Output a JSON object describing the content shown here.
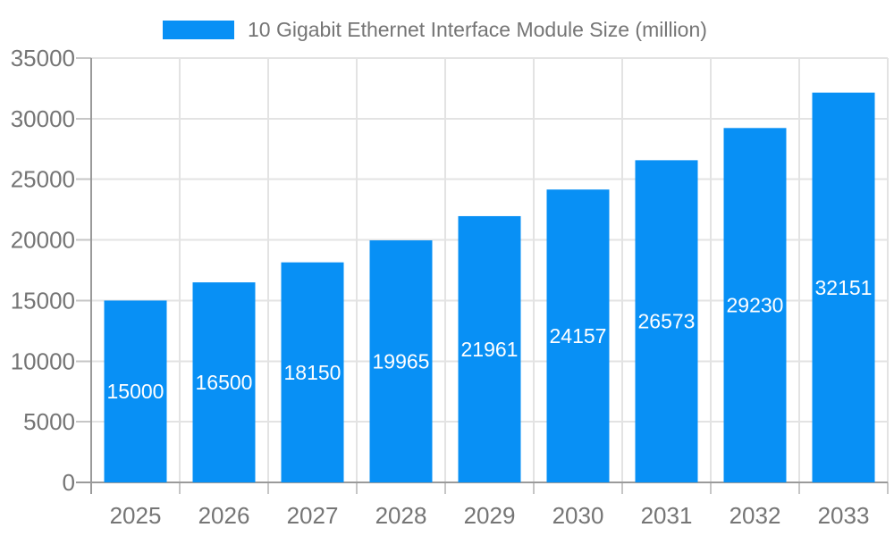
{
  "chart_data": {
    "type": "bar",
    "title": "10 Gigabit Ethernet Interface Module Size (million)",
    "categories": [
      "2025",
      "2026",
      "2027",
      "2028",
      "2029",
      "2030",
      "2031",
      "2032",
      "2033"
    ],
    "series": [
      {
        "name": "10 Gigabit Ethernet Interface Module Size (million)",
        "values": [
          15000,
          16500,
          18150,
          19965,
          21961,
          24157,
          26573,
          29230,
          32151
        ]
      }
    ],
    "value_labels": [
      "15000",
      "16500",
      "18150",
      "19965",
      "21961",
      "24157",
      "26573",
      "29230",
      "32151"
    ],
    "xlabel": "",
    "ylabel": "",
    "ylim": [
      0,
      35000
    ],
    "yticks": [
      0,
      5000,
      10000,
      15000,
      20000,
      25000,
      30000,
      35000
    ],
    "ytick_labels": [
      "0",
      "5000",
      "10000",
      "15000",
      "20000",
      "25000",
      "30000",
      "35000"
    ],
    "legend_position": "top",
    "grid": true,
    "value_label_position": "inside-center",
    "colors": {
      "bar": "#0890F5",
      "value_label": "#FFFFFF",
      "axis_text": "#757575",
      "legend_text": "#757575",
      "grid_line": "#E3E3E3",
      "tick_line": "#C6C6C6",
      "axis_line": "#9A9A9A"
    }
  }
}
